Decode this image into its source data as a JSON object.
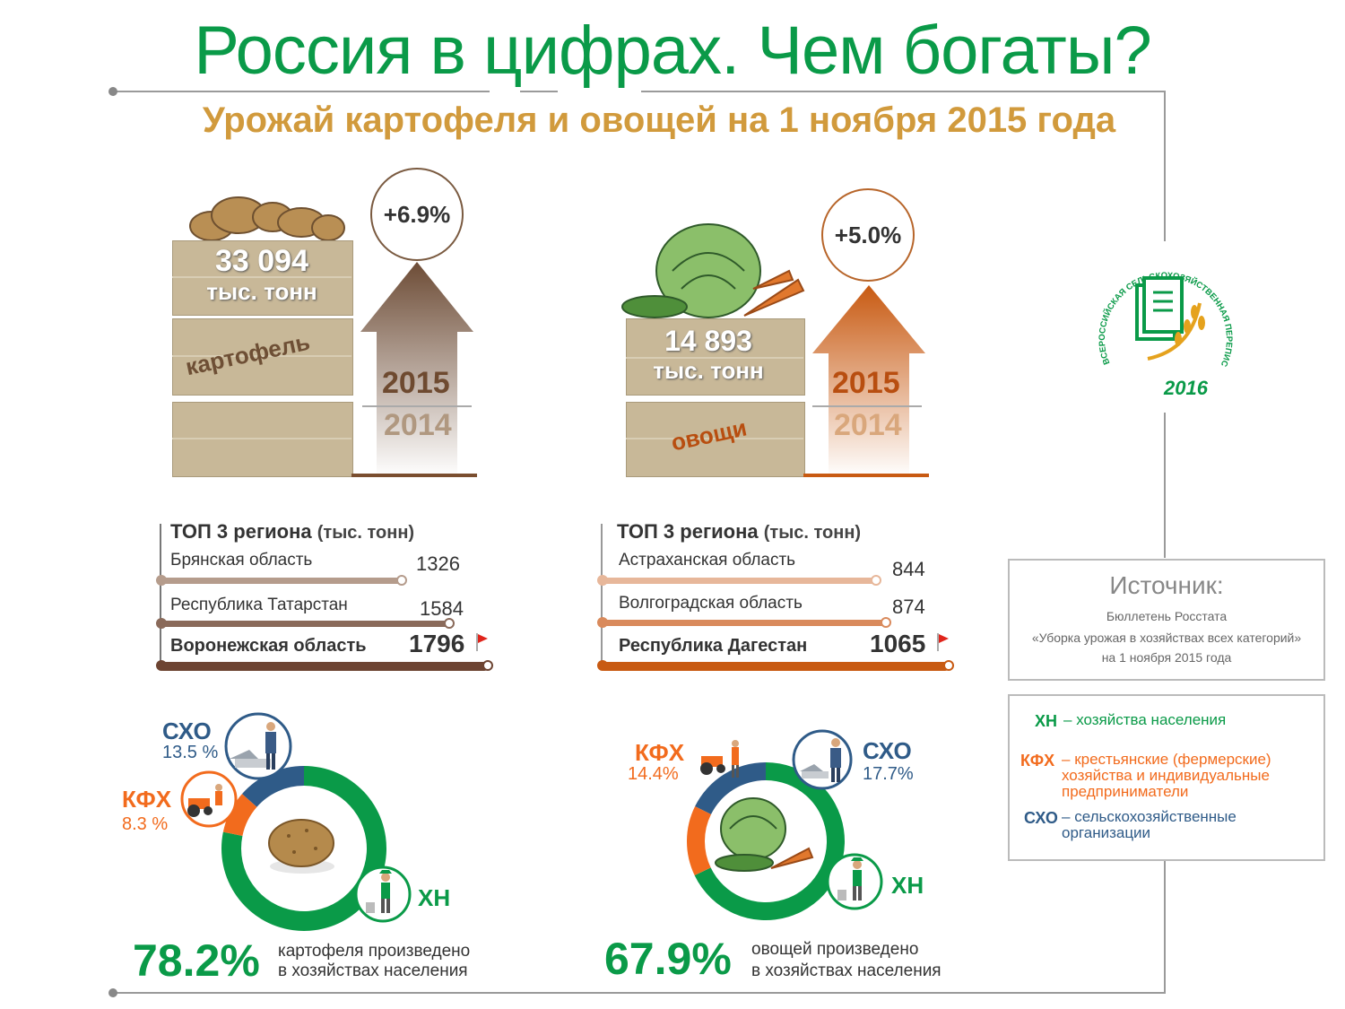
{
  "header": {
    "title": "Россия в цифрах. Чем богаты?",
    "subtitle": "Урожай картофеля и овощей на 1 ноября 2015 года"
  },
  "potatoes": {
    "amount": "33 094",
    "unit": "тыс. тонн",
    "label": "картофель",
    "growth": "+6.9%",
    "year_current": "2015",
    "year_previous": "2014",
    "top_title": "ТОП 3 региона",
    "top_unit": "(тыс. тонн)",
    "regions": [
      {
        "name": "Брянская область",
        "value": "1326"
      },
      {
        "name": "Республика Татарстан",
        "value": "1584"
      },
      {
        "name": "Воронежская область",
        "value": "1796"
      }
    ],
    "big_pct": "78.2%",
    "pct_desc_1": "картофеля произведено",
    "pct_desc_2": "в хозяйствах населения",
    "segments": {
      "sxo_label": "СХО",
      "sxo_pct": "13.5 %",
      "kfx_label": "КФХ",
      "kfx_pct": "8.3 %",
      "xn_label": "ХН"
    }
  },
  "vegetables": {
    "amount": "14 893",
    "unit": "тыс. тонн",
    "label": "овощи",
    "growth": "+5.0%",
    "year_current": "2015",
    "year_previous": "2014",
    "top_title": "ТОП 3 региона",
    "top_unit": "(тыс. тонн)",
    "regions": [
      {
        "name": "Астраханская  область",
        "value": "844"
      },
      {
        "name": "Волгоградская  область",
        "value": "874"
      },
      {
        "name": "Республика Дагестан",
        "value": "1065"
      }
    ],
    "big_pct": "67.9%",
    "pct_desc_1": "овощей произведено",
    "pct_desc_2": "в хозяйствах населения",
    "segments": {
      "sxo_label": "СХО",
      "sxo_pct": "17.7%",
      "kfx_label": "КФХ",
      "kfx_pct": "14.4%",
      "xn_label": "ХН"
    }
  },
  "census_logo": {
    "text": "ВСЕРОССИЙСКАЯ СЕЛЬСКОХОЗЯЙСТВЕННАЯ ПЕРЕПИСЬ",
    "year": "2016"
  },
  "source": {
    "title": "Источник:",
    "line1": "Бюллетень Росстата",
    "line2": "«Уборка урожая в  хозяйствах всех  категорий»",
    "line3": "на 1 ноября 2015 года"
  },
  "legend": [
    {
      "abbr": "ХН",
      "text": "хозяйства населения"
    },
    {
      "abbr": "КФХ",
      "text": "крестьянские (фермерские) хозяйства и индивидуальные предприниматели"
    },
    {
      "abbr": "СХО",
      "text": "сельскохозяйственные организации"
    }
  ],
  "colors": {
    "green": "#0a9a48",
    "orange": "#f26b1d",
    "blue": "#2f5b88",
    "gold": "#d19a3c",
    "brown": "#7a4e2f",
    "veg_orange": "#c85a12"
  },
  "chart_data": [
    {
      "type": "pie",
      "categories": [
        "ХН",
        "КФХ",
        "СХО"
      ],
      "values": [
        78.2,
        8.3,
        13.5
      ]
    },
    {
      "type": "pie",
      "categories": [
        "ХН",
        "КФХ",
        "СХО"
      ],
      "values": [
        67.9,
        14.4,
        17.7
      ]
    },
    {
      "type": "bar",
      "categories": [
        "Брянская область",
        "Республика Татарстан",
        "Воронежская область"
      ],
      "values": [
        1326,
        1584,
        1796
      ]
    },
    {
      "type": "bar",
      "categories": [
        "Астраханская  область",
        "Волгоградская  область",
        "Республика Дагестан"
      ],
      "values": [
        844,
        874,
        1065
      ]
    }
  ]
}
